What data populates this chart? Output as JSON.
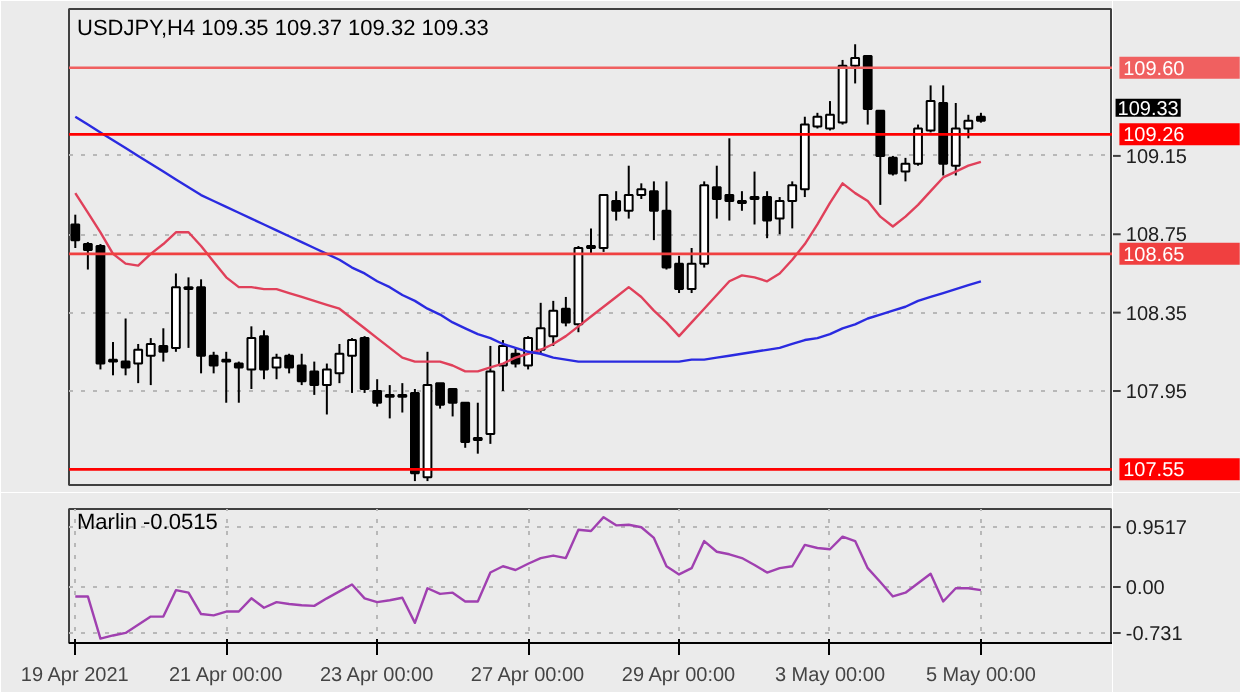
{
  "chart_data": [
    {
      "type": "candlestick",
      "title": "USDJPY,H4  109.35 109.37 109.32 109.33",
      "categories": [
        null,
        null,
        null,
        null,
        null,
        null,
        null,
        null,
        null,
        null,
        null,
        null,
        null,
        null,
        null,
        null,
        null,
        null,
        null,
        null,
        null,
        null,
        null,
        null,
        null,
        null,
        null,
        null,
        null,
        null,
        null,
        null,
        null,
        null,
        null,
        null,
        null,
        null,
        null,
        null,
        null,
        null,
        null,
        null,
        null,
        null,
        null,
        null,
        null,
        null,
        null,
        null,
        null,
        null,
        null,
        null,
        null,
        null,
        null,
        null,
        null,
        null,
        null,
        null,
        null,
        null,
        null,
        null,
        null,
        null,
        null,
        null,
        null
      ],
      "ohlc": [
        [
          108.8,
          108.85,
          108.68,
          108.72
        ],
        [
          108.7,
          108.71,
          108.57,
          108.67
        ],
        [
          108.69,
          108.7,
          108.06,
          108.09
        ],
        [
          108.11,
          108.2,
          108.03,
          108.1
        ],
        [
          108.1,
          108.32,
          108.03,
          108.07
        ],
        [
          108.09,
          108.19,
          107.99,
          108.16
        ],
        [
          108.13,
          108.22,
          107.98,
          108.19
        ],
        [
          108.18,
          108.27,
          108.1,
          108.15
        ],
        [
          108.17,
          108.55,
          108.15,
          108.48
        ],
        [
          108.48,
          108.53,
          108.17,
          108.47
        ],
        [
          108.48,
          108.52,
          108.04,
          108.13
        ],
        [
          108.13,
          108.15,
          108.04,
          108.08
        ],
        [
          108.11,
          108.15,
          107.89,
          108.1
        ],
        [
          108.09,
          108.1,
          107.89,
          108.07
        ],
        [
          108.06,
          108.28,
          107.96,
          108.22
        ],
        [
          108.23,
          108.26,
          108.01,
          108.06
        ],
        [
          108.07,
          108.14,
          108.01,
          108.12
        ],
        [
          108.13,
          108.14,
          108.04,
          108.07
        ],
        [
          108.08,
          108.14,
          107.98,
          108.0
        ],
        [
          108.05,
          108.1,
          107.93,
          107.98
        ],
        [
          107.98,
          108.09,
          107.83,
          108.06
        ],
        [
          108.04,
          108.19,
          107.99,
          108.14
        ],
        [
          108.13,
          108.22,
          107.94,
          108.21
        ],
        [
          108.22,
          108.23,
          107.94,
          107.96
        ],
        [
          107.95,
          108.01,
          107.87,
          107.89
        ],
        [
          107.92,
          107.98,
          107.81,
          107.93
        ],
        [
          107.92,
          107.99,
          107.84,
          107.93
        ],
        [
          107.94,
          107.96,
          107.49,
          107.53
        ],
        [
          107.51,
          108.15,
          107.49,
          107.98
        ],
        [
          107.99,
          107.99,
          107.86,
          107.88
        ],
        [
          107.96,
          107.96,
          107.82,
          107.89
        ],
        [
          107.89,
          107.89,
          107.66,
          107.69
        ],
        [
          107.71,
          107.89,
          107.63,
          107.7
        ],
        [
          107.73,
          108.18,
          107.68,
          108.05
        ],
        [
          108.08,
          108.21,
          107.95,
          108.18
        ],
        [
          108.14,
          108.17,
          108.07,
          108.09
        ],
        [
          108.08,
          108.23,
          108.06,
          108.22
        ],
        [
          108.16,
          108.4,
          108.14,
          108.27
        ],
        [
          108.23,
          108.41,
          108.18,
          108.36
        ],
        [
          108.37,
          108.43,
          108.28,
          108.3
        ],
        [
          108.29,
          108.69,
          108.25,
          108.68
        ],
        [
          108.68,
          108.78,
          108.65,
          108.69
        ],
        [
          108.68,
          108.95,
          108.66,
          108.95
        ],
        [
          108.92,
          108.97,
          108.82,
          108.87
        ],
        [
          108.87,
          109.1,
          108.83,
          108.95
        ],
        [
          108.95,
          109.01,
          108.93,
          108.98
        ],
        [
          108.97,
          109.02,
          108.72,
          108.87
        ],
        [
          108.87,
          109.02,
          108.57,
          108.58
        ],
        [
          108.6,
          108.64,
          108.45,
          108.47
        ],
        [
          108.47,
          108.68,
          108.45,
          108.6
        ],
        [
          108.6,
          109.02,
          108.58,
          109.0
        ],
        [
          108.99,
          109.1,
          108.83,
          108.93
        ],
        [
          108.95,
          109.24,
          108.82,
          108.92
        ],
        [
          108.91,
          108.97,
          108.87,
          108.92
        ],
        [
          108.94,
          109.07,
          108.8,
          108.93
        ],
        [
          108.94,
          108.97,
          108.73,
          108.82
        ],
        [
          108.83,
          108.94,
          108.75,
          108.92
        ],
        [
          108.92,
          109.02,
          108.78,
          109.0
        ],
        [
          108.98,
          109.35,
          108.94,
          109.31
        ],
        [
          109.3,
          109.37,
          109.29,
          109.35
        ],
        [
          109.29,
          109.43,
          109.28,
          109.36
        ],
        [
          109.32,
          109.64,
          109.31,
          109.61
        ],
        [
          109.61,
          109.72,
          109.52,
          109.65
        ],
        [
          109.66,
          109.66,
          109.31,
          109.39
        ],
        [
          109.38,
          109.38,
          108.9,
          109.15
        ],
        [
          109.14,
          109.15,
          109.05,
          109.06
        ],
        [
          109.07,
          109.14,
          109.02,
          109.11
        ],
        [
          109.11,
          109.31,
          109.1,
          109.29
        ],
        [
          109.28,
          109.51,
          109.27,
          109.43
        ],
        [
          109.42,
          109.51,
          109.05,
          109.11
        ],
        [
          109.1,
          109.42,
          109.05,
          109.29
        ],
        [
          109.29,
          109.36,
          109.24,
          109.33
        ],
        [
          109.35,
          109.37,
          109.32,
          109.33
        ]
      ],
      "series": [
        {
          "type": "line",
          "color": "#e0405a",
          "values": [
            108.96,
            108.86,
            108.76,
            108.65,
            108.6,
            108.59,
            108.65,
            108.7,
            108.76,
            108.76,
            108.69,
            108.61,
            108.53,
            108.48,
            108.48,
            108.47,
            108.47,
            108.45,
            108.43,
            108.41,
            108.39,
            108.37,
            108.32,
            108.27,
            108.22,
            108.17,
            108.12,
            108.1,
            108.1,
            108.1,
            108.08,
            108.05,
            108.05,
            108.07,
            108.09,
            108.12,
            108.14,
            108.16,
            108.19,
            108.23,
            108.28,
            108.33,
            108.38,
            108.43,
            108.48,
            108.43,
            108.36,
            108.3,
            108.23,
            108.3,
            108.37,
            108.44,
            108.51,
            108.54,
            108.53,
            108.51,
            108.55,
            108.62,
            108.7,
            108.8,
            108.91,
            109.01,
            108.96,
            108.92,
            108.84,
            108.79,
            108.84,
            108.9,
            108.97,
            109.04,
            109.07,
            109.1,
            109.12
          ]
        },
        {
          "type": "line",
          "color": "#2a2ae0",
          "values": [
            109.35,
            109.31,
            109.27,
            109.23,
            109.19,
            109.15,
            109.11,
            109.07,
            109.03,
            108.99,
            108.95,
            108.92,
            108.89,
            108.86,
            108.83,
            108.8,
            108.77,
            108.74,
            108.71,
            108.68,
            108.65,
            108.62,
            108.58,
            108.55,
            108.51,
            108.48,
            108.44,
            108.41,
            108.37,
            108.34,
            108.3,
            108.27,
            108.24,
            108.22,
            108.19,
            108.17,
            108.15,
            108.14,
            108.12,
            108.11,
            108.1,
            108.1,
            108.1,
            108.1,
            108.1,
            108.1,
            108.1,
            108.1,
            108.1,
            108.11,
            108.11,
            108.12,
            108.13,
            108.14,
            108.15,
            108.16,
            108.17,
            108.19,
            108.21,
            108.22,
            108.24,
            108.27,
            108.29,
            108.32,
            108.34,
            108.36,
            108.38,
            108.41,
            108.43,
            108.45,
            108.47,
            108.49,
            108.51
          ]
        }
      ],
      "ref_lines": [
        {
          "axis": "y",
          "value": 109.6,
          "label": "109.60",
          "color": "#f06060"
        },
        {
          "axis": "y",
          "value": 109.26,
          "label": "109.26",
          "color": "#ff0000"
        },
        {
          "axis": "y",
          "value": 108.65,
          "label": "108.65",
          "color": "#f04040"
        },
        {
          "axis": "y",
          "value": 107.55,
          "label": "107.55",
          "color": "#ff0000"
        }
      ],
      "annotations": [
        "109.33"
      ],
      "ylim": [
        107.47,
        109.9
      ],
      "yticks": [
        109.15,
        108.75,
        108.35,
        107.95
      ],
      "tick_labels": "y",
      "grid": "y"
    },
    {
      "type": "line",
      "title": "Marlin -0.0515",
      "categories": [
        "19 Apr 2021",
        null,
        null,
        null,
        null,
        null,
        null,
        null,
        null,
        null,
        null,
        null,
        "21 Apr 00:00",
        null,
        null,
        null,
        null,
        null,
        null,
        null,
        null,
        null,
        null,
        null,
        "23 Apr 00:00",
        null,
        null,
        null,
        null,
        null,
        null,
        null,
        null,
        null,
        null,
        null,
        "27 Apr 00:00",
        null,
        null,
        null,
        null,
        null,
        null,
        null,
        null,
        null,
        null,
        null,
        "29 Apr 00:00",
        null,
        null,
        null,
        null,
        null,
        null,
        null,
        null,
        null,
        null,
        null,
        "3 May 00:00",
        null,
        null,
        null,
        null,
        null,
        null,
        null,
        null,
        null,
        null,
        null,
        "5 May 00:00"
      ],
      "series": [
        {
          "color": "#a040b0",
          "values": [
            -0.15,
            -0.15,
            -0.82,
            -0.77,
            -0.73,
            -0.6,
            -0.47,
            -0.47,
            -0.05,
            -0.09,
            -0.43,
            -0.45,
            -0.39,
            -0.39,
            -0.18,
            -0.33,
            -0.24,
            -0.27,
            -0.29,
            -0.3,
            -0.18,
            -0.07,
            0.04,
            -0.18,
            -0.24,
            -0.21,
            -0.17,
            -0.57,
            -0.02,
            -0.11,
            -0.09,
            -0.23,
            -0.23,
            0.23,
            0.33,
            0.27,
            0.37,
            0.46,
            0.5,
            0.46,
            0.91,
            0.89,
            1.11,
            0.98,
            0.99,
            0.95,
            0.78,
            0.33,
            0.2,
            0.3,
            0.73,
            0.56,
            0.52,
            0.46,
            0.35,
            0.23,
            0.3,
            0.33,
            0.67,
            0.62,
            0.6,
            0.8,
            0.73,
            0.3,
            0.08,
            -0.15,
            -0.09,
            0.06,
            0.21,
            -0.23,
            -0.02,
            -0.02,
            -0.05
          ]
        }
      ],
      "ylim": [
        -0.89,
        1.24
      ],
      "yticks": [
        0.9517,
        {
          "value": 0,
          "label": "0.00"
        },
        -0.731
      ],
      "grid": true,
      "line_style": "solid"
    }
  ]
}
